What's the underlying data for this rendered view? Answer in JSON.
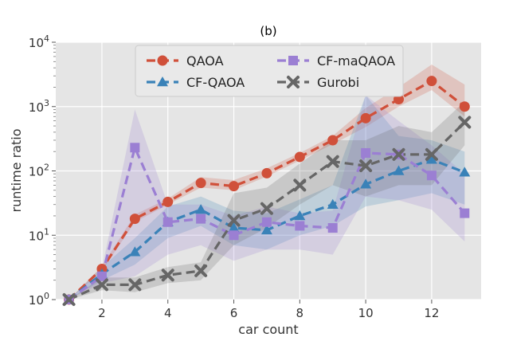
{
  "chart_data": {
    "type": "line",
    "title": "(b)",
    "xlabel": "car count",
    "ylabel": "runtime ratio",
    "xlim": [
      0.6,
      13.5
    ],
    "ylim": [
      1,
      10000
    ],
    "yscale": "log",
    "grid": true,
    "legend_position": "top-center",
    "x_ticks": [
      2,
      4,
      6,
      8,
      10,
      12
    ],
    "y_ticks": [
      {
        "value": 1,
        "base": "10",
        "exp": "0"
      },
      {
        "value": 10,
        "base": "10",
        "exp": "1"
      },
      {
        "value": 100,
        "base": "10",
        "exp": "2"
      },
      {
        "value": 1000,
        "base": "10",
        "exp": "3"
      },
      {
        "value": 10000,
        "base": "10",
        "exp": "4"
      }
    ],
    "x": [
      1,
      2,
      3,
      4,
      5,
      6,
      7,
      8,
      9,
      10,
      11,
      12,
      13
    ],
    "series": [
      {
        "name": "QAOA",
        "color": "#d0503a",
        "marker": "circle",
        "values": [
          1,
          3,
          18,
          33,
          65,
          58,
          92,
          165,
          300,
          660,
          1300,
          2500,
          1000
        ],
        "lower": [
          1,
          2.8,
          16,
          30,
          55,
          50,
          82,
          145,
          260,
          480,
          1000,
          1800,
          700
        ],
        "upper": [
          1,
          3.3,
          21,
          37,
          80,
          72,
          110,
          190,
          350,
          950,
          2000,
          4500,
          2200
        ]
      },
      {
        "name": "CF-QAOA",
        "color": "#3a82b8",
        "marker": "triangle",
        "values": [
          1,
          2.5,
          5.5,
          16,
          25,
          13,
          12,
          20,
          30,
          62,
          100,
          150,
          95
        ],
        "lower": [
          1,
          2.0,
          3.5,
          9,
          14,
          7,
          6,
          10,
          14,
          28,
          35,
          45,
          30
        ],
        "upper": [
          1,
          3.2,
          9,
          28,
          40,
          24,
          22,
          36,
          60,
          1500,
          350,
          300,
          200
        ]
      },
      {
        "name": "CF-maQAOA",
        "color": "#9b7fd3",
        "marker": "square",
        "values": [
          1,
          2.3,
          230,
          16,
          18,
          10,
          16,
          14,
          13,
          190,
          180,
          85,
          22
        ],
        "lower": [
          1,
          1.8,
          2.3,
          5,
          7,
          4,
          6,
          6,
          5,
          40,
          35,
          25,
          8
        ],
        "upper": [
          1,
          3.0,
          900,
          30,
          30,
          20,
          28,
          22,
          24,
          1500,
          600,
          250,
          90
        ]
      },
      {
        "name": "Gurobi",
        "color": "#666666",
        "marker": "x",
        "values": [
          1,
          1.7,
          1.7,
          2.4,
          2.8,
          17,
          26,
          60,
          140,
          120,
          180,
          180,
          570
        ],
        "lower": [
          1,
          1.4,
          1.3,
          1.8,
          2.0,
          7,
          13,
          30,
          60,
          40,
          60,
          60,
          250
        ],
        "upper": [
          1,
          2.2,
          2.2,
          3.2,
          3.8,
          45,
          55,
          130,
          300,
          300,
          500,
          400,
          1200
        ]
      }
    ]
  }
}
